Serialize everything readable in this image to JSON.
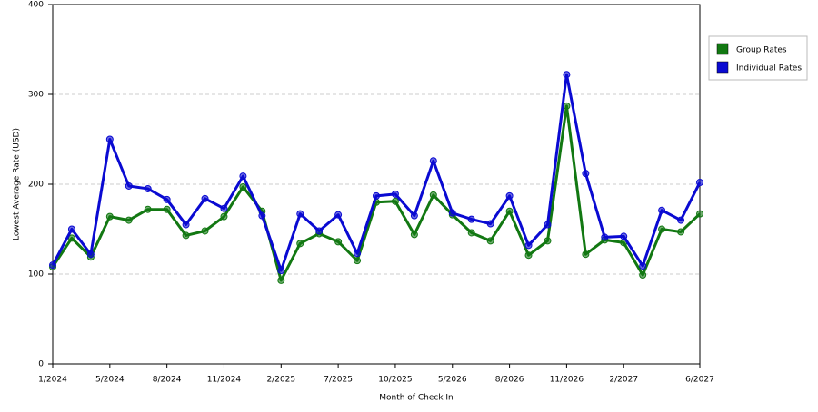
{
  "chart_data": {
    "type": "line",
    "y_label": "Lowest Average Rate (USD)",
    "x_label": "Month of Check In",
    "categories": [
      "1/2024",
      null,
      null,
      "5/2024",
      null,
      null,
      "8/2024",
      null,
      null,
      "11/2024",
      null,
      null,
      "2/2025",
      null,
      null,
      "7/2025",
      null,
      null,
      "10/2025",
      null,
      null,
      "5/2026",
      null,
      null,
      "8/2026",
      null,
      null,
      "11/2026",
      null,
      null,
      "2/2027",
      null,
      null,
      null,
      "6/2027"
    ],
    "series": [
      {
        "name": "Group Rates",
        "color": "#127812",
        "values": [
          108,
          140,
          119,
          164,
          160,
          172,
          172,
          143,
          148,
          164,
          197,
          170,
          93,
          134,
          145,
          136,
          115,
          180,
          181,
          144,
          188,
          166,
          146,
          137,
          170,
          121,
          137,
          287,
          122,
          138,
          135,
          99,
          150,
          147,
          167
        ]
      },
      {
        "name": "Individual Rates",
        "color": "#0a0ad2",
        "values": [
          110,
          150,
          122,
          250,
          198,
          195,
          183,
          155,
          184,
          173,
          209,
          165,
          104,
          167,
          148,
          166,
          123,
          187,
          189,
          165,
          226,
          168,
          161,
          156,
          187,
          132,
          155,
          322,
          212,
          141,
          142,
          109,
          171,
          160,
          202
        ]
      }
    ],
    "ylim": [
      0,
      400
    ],
    "yticks": [
      0,
      100,
      200,
      300,
      400
    ],
    "grid": true,
    "legend": "right"
  }
}
